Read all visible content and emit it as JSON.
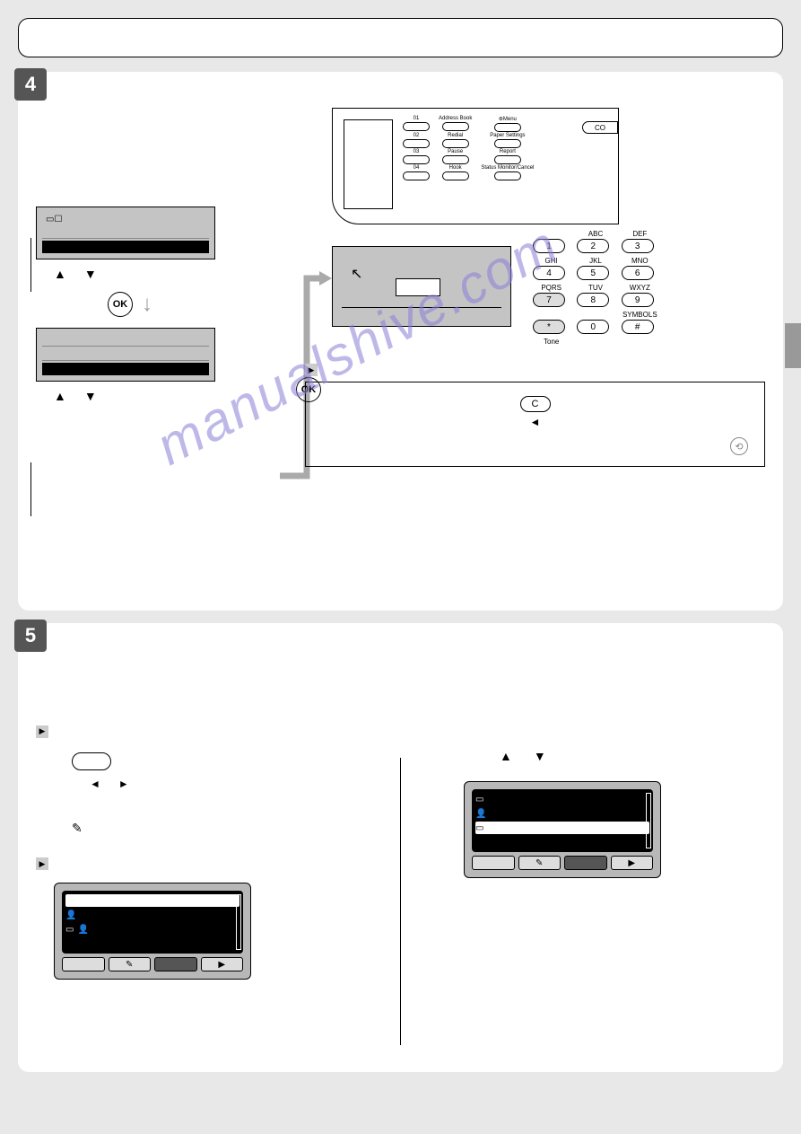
{
  "step4": {
    "number": "4"
  },
  "step5": {
    "number": "5"
  },
  "ok_label": "OK",
  "panel": {
    "cols": [
      {
        "nums": [
          "01",
          "02",
          "03",
          "04"
        ],
        "labels": [
          "",
          "",
          "",
          ""
        ]
      },
      {
        "labels": [
          "Address Book",
          "Redial",
          "Pause",
          "Hook"
        ]
      },
      {
        "labels": [
          "⊛Menu",
          "Paper Settings",
          "Report",
          "Status Monitor/Cancel"
        ]
      }
    ],
    "right_btn": "CO"
  },
  "keypad": {
    "rows": [
      [
        {
          "n": "1",
          "l": ""
        },
        {
          "n": "2",
          "l": "ABC"
        },
        {
          "n": "3",
          "l": "DEF"
        }
      ],
      [
        {
          "n": "4",
          "l": "GHI"
        },
        {
          "n": "5",
          "l": "JKL"
        },
        {
          "n": "6",
          "l": "MNO"
        }
      ],
      [
        {
          "n": "7",
          "l": "PQRS"
        },
        {
          "n": "8",
          "l": "TUV"
        },
        {
          "n": "9",
          "l": "WXYZ"
        }
      ],
      [
        {
          "n": "*",
          "l": ""
        },
        {
          "n": "0",
          "l": ""
        },
        {
          "n": "#",
          "l": "SYMBOLS"
        }
      ]
    ],
    "tone_label": "Tone"
  },
  "note": {
    "c_label": "C",
    "left_arrow": "◄"
  },
  "triangles": {
    "up": "▲",
    "down": "▼",
    "left": "◄",
    "right": "►"
  },
  "watermark": "manualshive.com"
}
